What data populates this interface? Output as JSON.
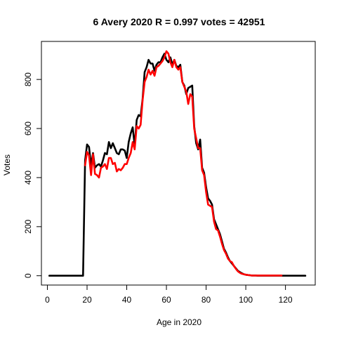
{
  "chart_data": {
    "type": "line",
    "title": "6 Avery 2020 R = 0.997 votes = 42951",
    "xlabel": "Age in 2020",
    "ylabel": "Votes",
    "xlim": [
      -3,
      135
    ],
    "ylim": [
      -38,
      955
    ],
    "xticks": [
      0,
      20,
      40,
      60,
      80,
      100,
      120
    ],
    "yticks": [
      0,
      200,
      400,
      600,
      800
    ],
    "grid": false,
    "legend": "none",
    "series": [
      {
        "color": "#000000",
        "x": [
          1,
          2,
          3,
          4,
          5,
          6,
          7,
          8,
          9,
          10,
          11,
          12,
          13,
          14,
          15,
          16,
          17,
          18,
          19,
          20,
          21,
          22,
          23,
          24,
          25,
          26,
          27,
          28,
          29,
          30,
          31,
          32,
          33,
          34,
          35,
          36,
          37,
          38,
          39,
          40,
          41,
          42,
          43,
          44,
          45,
          46,
          47,
          48,
          49,
          50,
          51,
          52,
          53,
          54,
          55,
          56,
          57,
          58,
          59,
          60,
          61,
          62,
          63,
          64,
          65,
          66,
          67,
          68,
          69,
          70,
          71,
          72,
          73,
          74,
          75,
          76,
          77,
          78,
          79,
          80,
          81,
          82,
          83,
          84,
          85,
          86,
          87,
          88,
          89,
          90,
          91,
          92,
          93,
          94,
          95,
          96,
          97,
          98,
          99,
          100,
          101,
          102,
          103,
          104,
          105,
          106,
          107,
          108,
          109,
          110,
          111,
          112,
          113,
          114,
          115,
          116,
          117,
          118,
          119,
          120,
          121,
          122,
          123,
          124,
          125,
          126,
          127,
          128,
          129,
          130
        ],
        "values": [
          0,
          0,
          0,
          0,
          0,
          0,
          0,
          0,
          0,
          0,
          0,
          0,
          0,
          0,
          0,
          0,
          0,
          0,
          470,
          535,
          525,
          450,
          500,
          440,
          450,
          455,
          445,
          470,
          500,
          495,
          545,
          520,
          540,
          520,
          500,
          495,
          515,
          515,
          510,
          480,
          545,
          580,
          605,
          530,
          635,
          655,
          650,
          720,
          830,
          850,
          880,
          865,
          865,
          835,
          860,
          870,
          870,
          890,
          905,
          880,
          870,
          890,
          860,
          880,
          855,
          850,
          860,
          790,
          775,
          740,
          765,
          770,
          775,
          610,
          540,
          515,
          555,
          440,
          420,
          360,
          315,
          305,
          290,
          230,
          210,
          190,
          170,
          140,
          110,
          95,
          75,
          60,
          50,
          40,
          30,
          20,
          15,
          10,
          6,
          4,
          3,
          2,
          1,
          1,
          1,
          0,
          0,
          0,
          0,
          0,
          0,
          0,
          0,
          0,
          0,
          0,
          0,
          0,
          0,
          0,
          0,
          0,
          0,
          0,
          0,
          0,
          0,
          0,
          0,
          0
        ]
      },
      {
        "color": "#ff0000",
        "x": [
          19,
          20,
          21,
          22,
          23,
          24,
          25,
          26,
          27,
          28,
          29,
          30,
          31,
          32,
          33,
          34,
          35,
          36,
          37,
          38,
          39,
          40,
          41,
          42,
          43,
          44,
          45,
          46,
          47,
          48,
          49,
          50,
          51,
          52,
          53,
          54,
          55,
          56,
          57,
          58,
          59,
          60,
          61,
          62,
          63,
          64,
          65,
          66,
          67,
          68,
          69,
          70,
          71,
          72,
          73,
          74,
          75,
          76,
          77,
          78,
          79,
          80,
          81,
          82,
          83,
          84,
          85,
          86,
          87,
          88,
          89,
          90,
          91,
          92,
          93,
          94,
          95,
          96,
          97,
          98,
          99,
          100,
          101,
          102,
          103,
          104,
          105,
          106,
          107,
          108,
          109,
          110,
          111,
          117,
          118
        ],
        "values": [
          450,
          505,
          490,
          410,
          495,
          415,
          410,
          400,
          440,
          445,
          455,
          435,
          480,
          480,
          455,
          460,
          425,
          435,
          430,
          440,
          455,
          455,
          480,
          500,
          545,
          515,
          610,
          600,
          615,
          715,
          790,
          810,
          840,
          820,
          835,
          815,
          850,
          855,
          865,
          875,
          890,
          915,
          905,
          870,
          850,
          880,
          850,
          840,
          850,
          790,
          770,
          750,
          700,
          740,
          730,
          600,
          560,
          520,
          520,
          430,
          410,
          340,
          290,
          285,
          280,
          220,
          190,
          185,
          160,
          130,
          105,
          90,
          70,
          60,
          55,
          40,
          28,
          18,
          12,
          8,
          6,
          4,
          3,
          2,
          1,
          1,
          1,
          1,
          1,
          1,
          1,
          1,
          1,
          1,
          1
        ]
      }
    ]
  }
}
